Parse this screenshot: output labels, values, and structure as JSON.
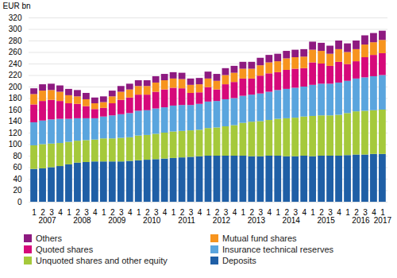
{
  "chart_data": {
    "type": "bar",
    "stacked": true,
    "grid": true,
    "legend": "bottom",
    "y_label": "EUR bn",
    "ylim": [
      0,
      320
    ],
    "yticks": [
      0,
      20,
      40,
      60,
      80,
      100,
      120,
      140,
      160,
      180,
      200,
      220,
      240,
      260,
      280,
      300,
      320
    ],
    "categories": [
      "1",
      "2",
      "3",
      "4",
      "1",
      "2",
      "3",
      "4",
      "1",
      "2",
      "3",
      "4",
      "1",
      "2",
      "3",
      "4",
      "1",
      "2",
      "3",
      "4",
      "1",
      "2",
      "3",
      "4",
      "1",
      "2",
      "3",
      "4",
      "1",
      "2",
      "3",
      "4",
      "1",
      "2",
      "3",
      "4",
      "1",
      "2",
      "3",
      "4",
      "1"
    ],
    "years": [
      "2007",
      "2008",
      "2009",
      "2010",
      "2011",
      "2012",
      "2013",
      "2014",
      "2015",
      "2016",
      "2017"
    ],
    "series": [
      {
        "name": "Deposits",
        "color": "#1f5fa6",
        "values": [
          57,
          58,
          60,
          62,
          65,
          68,
          69,
          70,
          70,
          70,
          70,
          71,
          72,
          73,
          74,
          75,
          76,
          77,
          78,
          79,
          80,
          80,
          80,
          80,
          80,
          79,
          79,
          80,
          80,
          79,
          79,
          80,
          79,
          80,
          80,
          80,
          81,
          82,
          82,
          83,
          83
        ]
      },
      {
        "name": "Unquoted shares and other equity",
        "color": "#a5c93b",
        "values": [
          41,
          42,
          41,
          40,
          39,
          38,
          38,
          38,
          40,
          40,
          41,
          41,
          43,
          43,
          44,
          45,
          46,
          46,
          46,
          46,
          48,
          49,
          51,
          53,
          57,
          60,
          61,
          62,
          64,
          66,
          67,
          68,
          70,
          70,
          70,
          71,
          73,
          75,
          76,
          76,
          77
        ]
      },
      {
        "name": "Insurance technical reserves",
        "color": "#5aa5de",
        "values": [
          40,
          41,
          42,
          42,
          40,
          39,
          38,
          37,
          38,
          40,
          41,
          42,
          43,
          43,
          44,
          44,
          45,
          45,
          44,
          45,
          46,
          46,
          47,
          47,
          47,
          47,
          48,
          49,
          50,
          51,
          52,
          52,
          54,
          55,
          55,
          56,
          56,
          57,
          58,
          59,
          60
        ]
      },
      {
        "name": "Quoted shares",
        "color": "#d6097a",
        "values": [
          31,
          34,
          34,
          31,
          27,
          25,
          21,
          16,
          15,
          21,
          25,
          27,
          28,
          27,
          29,
          31,
          31,
          29,
          21,
          20,
          25,
          20,
          26,
          28,
          30,
          28,
          31,
          32,
          31,
          33,
          33,
          32,
          39,
          35,
          31,
          36,
          29,
          30,
          35,
          37,
          38
        ]
      },
      {
        "name": "Mutual fund shares",
        "color": "#f7941e",
        "values": [
          18,
          18,
          17,
          16,
          14,
          13,
          12,
          10,
          10,
          12,
          14,
          14,
          15,
          15,
          16,
          16,
          16,
          16,
          14,
          14,
          15,
          15,
          16,
          16,
          17,
          17,
          18,
          19,
          19,
          20,
          20,
          20,
          22,
          22,
          21,
          22,
          21,
          21,
          22,
          22,
          23
        ]
      },
      {
        "name": "Others",
        "color": "#8e1a80",
        "values": [
          10,
          11,
          11,
          11,
          11,
          11,
          11,
          10,
          10,
          10,
          10,
          10,
          10,
          10,
          11,
          11,
          11,
          11,
          11,
          11,
          12,
          12,
          12,
          12,
          12,
          12,
          13,
          13,
          13,
          13,
          13,
          13,
          14,
          14,
          14,
          15,
          15,
          15,
          16,
          16,
          16
        ]
      }
    ]
  }
}
